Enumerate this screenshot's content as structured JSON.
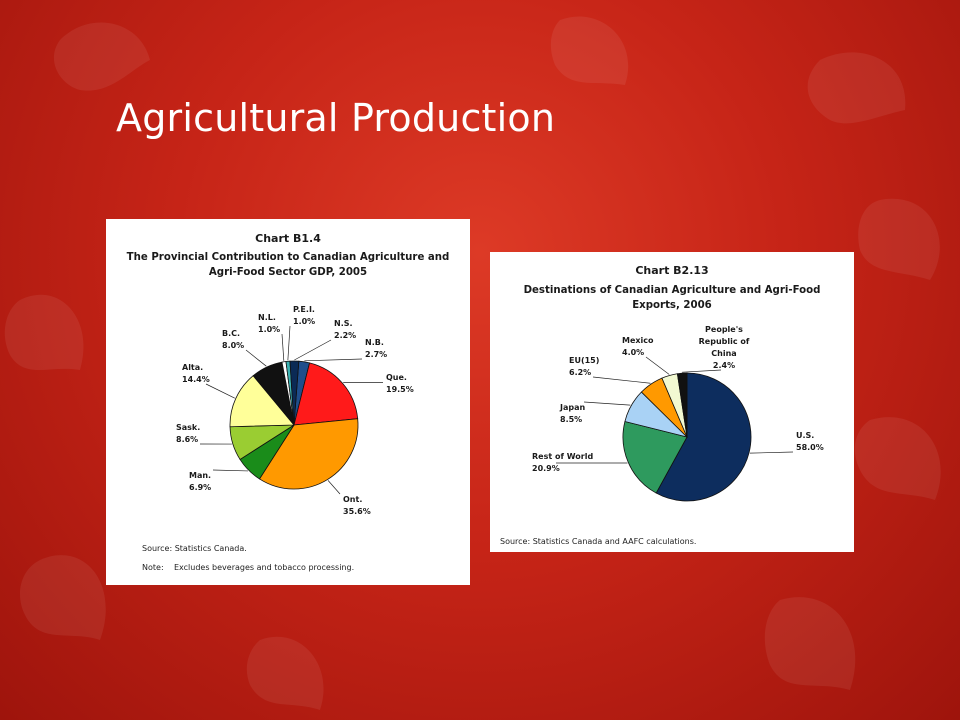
{
  "slide": {
    "title": "Agricultural Production"
  },
  "chart_data": [
    {
      "type": "pie",
      "number": "Chart B1.4",
      "title_lines": [
        "The Provincial Contribution to Canadian Agriculture and",
        "Agri-Food Sector GDP, 2005"
      ],
      "slices": [
        {
          "name": "N.B.",
          "label": "N.B.",
          "value": 2.7,
          "pct": "2.7%",
          "color": "#1f4e8c"
        },
        {
          "name": "Que.",
          "label": "Que.",
          "value": 19.5,
          "pct": "19.5%",
          "color": "#ff1a1a"
        },
        {
          "name": "Ont.",
          "label": "Ont.",
          "value": 35.6,
          "pct": "35.6%",
          "color": "#ff9900"
        },
        {
          "name": "Man.",
          "label": "Man.",
          "value": 6.9,
          "pct": "6.9%",
          "color": "#1a8c1a"
        },
        {
          "name": "Sask.",
          "label": "Sask.",
          "value": 8.6,
          "pct": "8.6%",
          "color": "#9acd32"
        },
        {
          "name": "Alta.",
          "label": "Alta.",
          "value": 14.4,
          "pct": "14.4%",
          "color": "#ffff99"
        },
        {
          "name": "B.C.",
          "label": "B.C.",
          "value": 8.0,
          "pct": "8.0%",
          "color": "#111111"
        },
        {
          "name": "N.L.",
          "label": "N.L.",
          "value": 1.0,
          "pct": "1.0%",
          "color": "#ffffff"
        },
        {
          "name": "P.E.I.",
          "label": "P.E.I.",
          "value": 1.0,
          "pct": "1.0%",
          "color": "#3cb4b4"
        },
        {
          "name": "N.S.",
          "label": "N.S.",
          "value": 2.2,
          "pct": "2.2%",
          "color": "#0b2a55"
        }
      ],
      "source": "Source: Statistics Canada.",
      "note_label": "Note:",
      "note_text": "Excludes beverages and tobacco processing."
    },
    {
      "type": "pie",
      "number": "Chart B2.13",
      "title_lines": [
        "Destinations of Canadian Agriculture and Agri-Food",
        "Exports, 2006"
      ],
      "slices": [
        {
          "name": "U.S.",
          "label": "U.S.",
          "value": 58.0,
          "pct": "58.0%",
          "color": "#0d2d5e"
        },
        {
          "name": "Rest of World",
          "label": "Rest of World",
          "value": 20.9,
          "pct": "20.9%",
          "color": "#2e9a5e"
        },
        {
          "name": "Japan",
          "label": "Japan",
          "value": 8.5,
          "pct": "8.5%",
          "color": "#a9d2f5"
        },
        {
          "name": "EU(15)",
          "label": "EU(15)",
          "value": 6.2,
          "pct": "6.2%",
          "color": "#ff9900"
        },
        {
          "name": "Mexico",
          "label": "Mexico",
          "value": 4.0,
          "pct": "4.0%",
          "color": "#f2f9d2"
        },
        {
          "name": "People's Republic of China",
          "label_lines": [
            "People's",
            "Republic of",
            "China"
          ],
          "value": 2.4,
          "pct": "2.4%",
          "color": "#111111"
        }
      ],
      "source": "Source: Statistics Canada and AAFC calculations."
    }
  ]
}
